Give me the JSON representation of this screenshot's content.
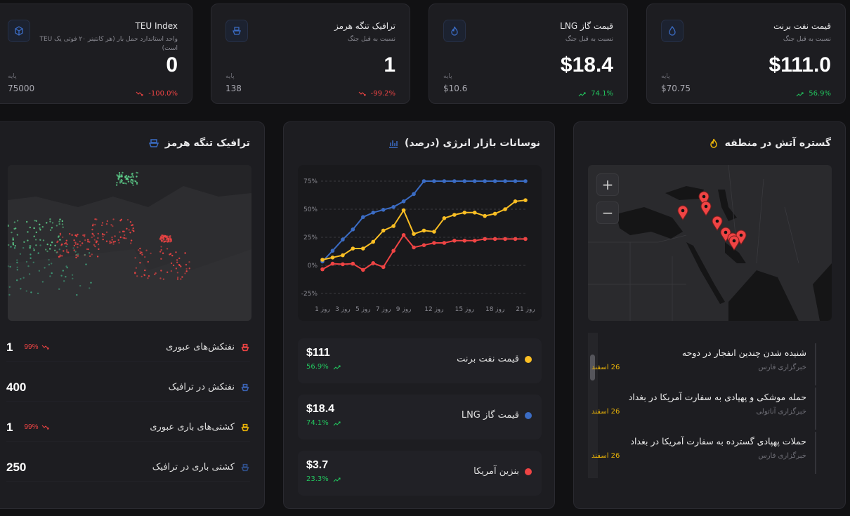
{
  "stats": [
    {
      "title": "TEU Index",
      "subtitle": "واحد استاندارد حمل بار (هر کانتینر ۲۰ فوتی یک TEU است)",
      "value": "0",
      "base_label": "پایه",
      "base": "75000",
      "change": "-100.0%",
      "trend": "down",
      "icon": "package-icon"
    },
    {
      "title": "ترافیک تنگه هرمز",
      "subtitle": "نسبت به قبل جنگ",
      "value": "1",
      "base_label": "پایه",
      "base": "138",
      "change": "-99.2%",
      "trend": "down",
      "icon": "ship-icon"
    },
    {
      "title": "قیمت گاز LNG",
      "subtitle": "نسبت به قبل جنگ",
      "value": "$18.4",
      "base_label": "پایه",
      "base": "$10.6",
      "change": "74.1%",
      "trend": "up",
      "icon": "flame-icon"
    },
    {
      "title": "قیمت نفت برنت",
      "subtitle": "نسبت به قبل جنگ",
      "value": "$111.0",
      "base_label": "پایه",
      "base": "$70.75",
      "change": "56.9%",
      "trend": "up",
      "icon": "droplet-icon"
    }
  ],
  "hormuz": {
    "title": "ترافیک تنگه هرمز",
    "rows": [
      {
        "label": "نفتکش‌های عبوری",
        "value": "1",
        "change": "99%",
        "icon_color": "#ef4444"
      },
      {
        "label": "نفتکش در ترافیک",
        "value": "400",
        "change": "",
        "icon_color": "#3b63b5"
      },
      {
        "label": "کشتی‌های باری عبوری",
        "value": "1",
        "change": "99%",
        "icon_color": "#eab308"
      },
      {
        "label": "کشتی باری در ترافیک",
        "value": "250",
        "change": "",
        "icon_color": "#2f4f8a"
      }
    ]
  },
  "energy": {
    "title": "نوسانات بازار انرژی (درصد)",
    "legend": [
      {
        "name": "قیمت نفت برنت",
        "value": "$111",
        "change": "56.9%",
        "color": "#fbbf24"
      },
      {
        "name": "قیمت گاز LNG",
        "value": "$18.4",
        "change": "74.1%",
        "color": "#3b6cc4"
      },
      {
        "name": "بنزین آمریکا",
        "value": "$3.7",
        "change": "23.3%",
        "color": "#ef4444"
      }
    ]
  },
  "chart_data": {
    "type": "line",
    "x": [
      1,
      2,
      3,
      4,
      5,
      6,
      7,
      8,
      9,
      10,
      11,
      12,
      13,
      14,
      15,
      16,
      17,
      18,
      19,
      20,
      21
    ],
    "xtick_labels": [
      "روز 1",
      "روز 3",
      "روز 5",
      "روز 7",
      "روز 9",
      "روز 12",
      "روز 15",
      "روز 18",
      "روز 21"
    ],
    "xtick_values": [
      1,
      3,
      5,
      7,
      9,
      12,
      15,
      18,
      21
    ],
    "ytick_labels": [
      "75%",
      "50%",
      "25%",
      "0%",
      "-25%"
    ],
    "ytick_values": [
      75,
      50,
      25,
      0,
      -25
    ],
    "ylim": [
      -25,
      75
    ],
    "grid": true,
    "series": [
      {
        "name": "قیمت گاز LNG",
        "color": "#3b6cc4",
        "values": [
          3.5,
          13,
          23,
          32,
          43,
          47,
          49.5,
          52,
          57,
          63.5,
          75,
          75,
          75,
          75,
          75,
          75,
          75,
          75,
          75,
          75,
          75
        ]
      },
      {
        "name": "قیمت نفت برنت",
        "color": "#fbbf24",
        "values": [
          5,
          7,
          9,
          15,
          15,
          21,
          31,
          35,
          49,
          28,
          31,
          30,
          42,
          45,
          47,
          47,
          44,
          46,
          50,
          57,
          58
        ]
      },
      {
        "name": "بنزین آمریکا",
        "color": "#ef4444",
        "values": [
          -3.5,
          1.5,
          1,
          1.5,
          -4,
          2,
          -1.5,
          13,
          27,
          16,
          18,
          20,
          20,
          22,
          22,
          22,
          23.5,
          23.5,
          23.5,
          23.5,
          23.5
        ]
      }
    ]
  },
  "fire": {
    "title": "گستره آتش در منطقه",
    "zoom_in": "+",
    "zoom_out": "−",
    "news": [
      {
        "headline": "شنیده شدن چندین انفجار در دوحه",
        "source": "خبرگزاری فارس",
        "date": "26 اسفند"
      },
      {
        "headline": "حمله موشکی و پهپادی به سفارت آمریکا در بغداد",
        "source": "خبرگزاری آناتولی",
        "date": "26 اسفند"
      },
      {
        "headline": "حملات پهپادی گسترده به سفارت آمریکا در بغداد",
        "source": "خبرگزاری فارس",
        "date": "26 اسفند"
      }
    ]
  }
}
